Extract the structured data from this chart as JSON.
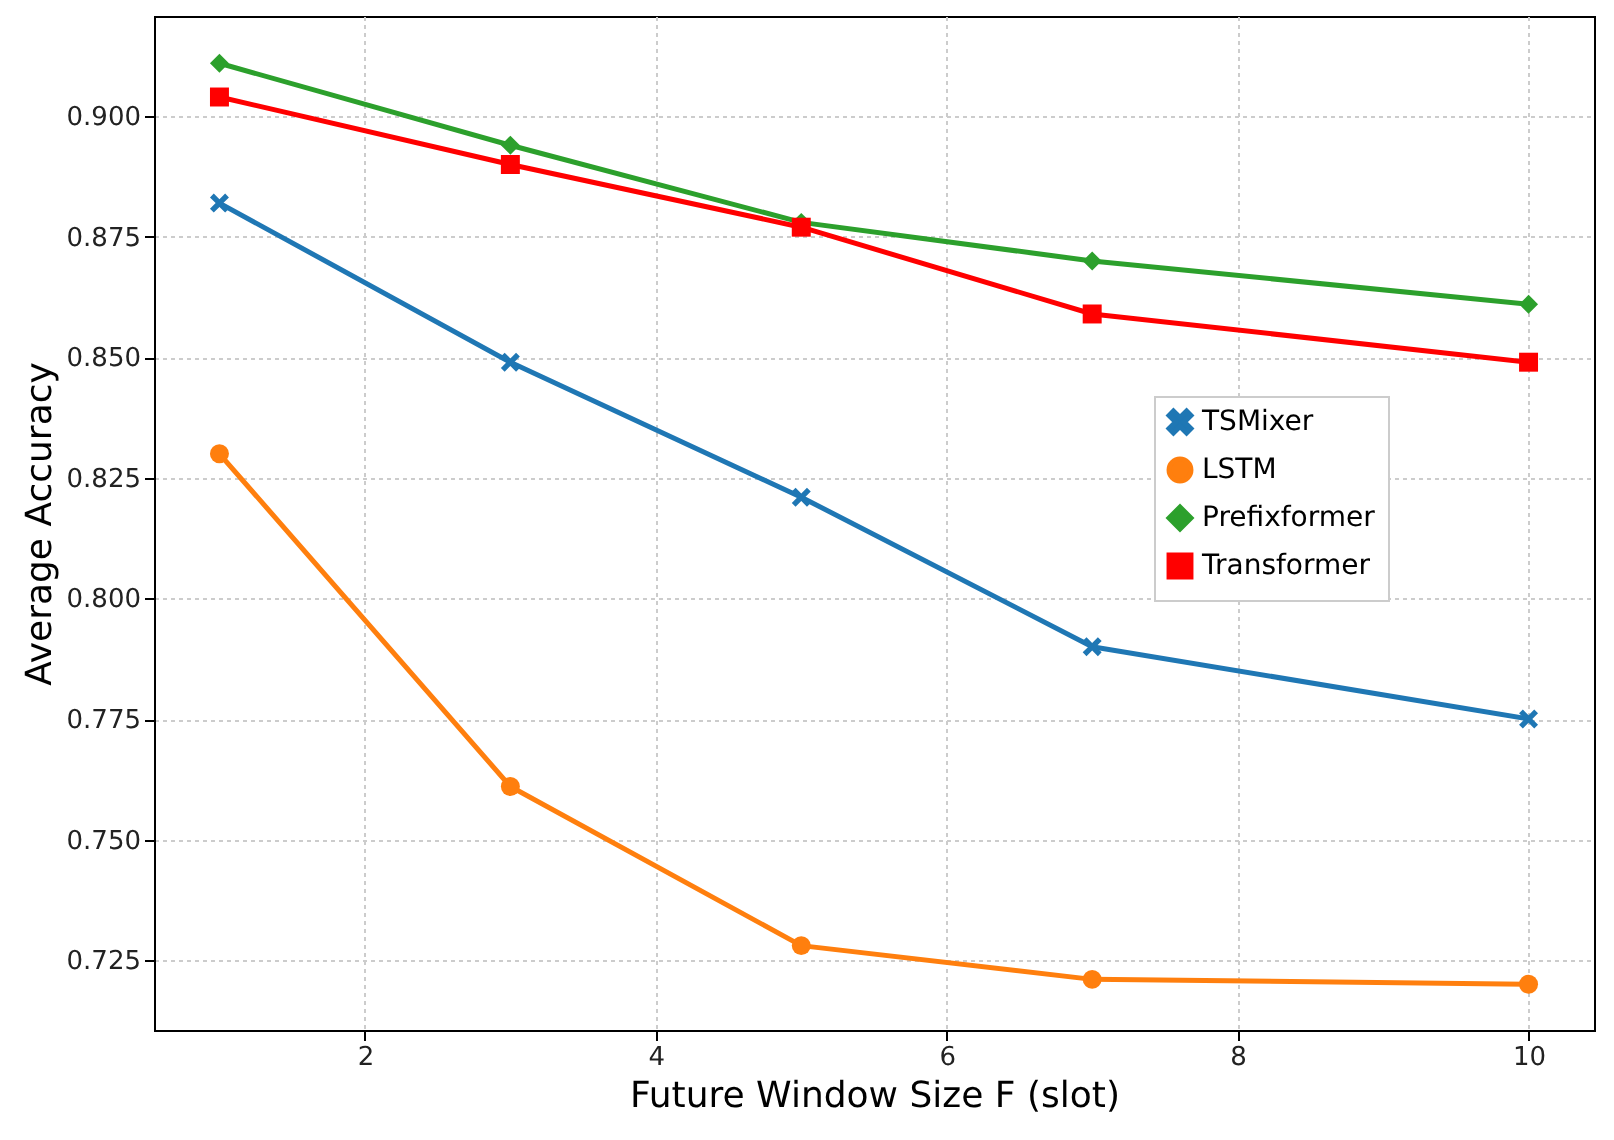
{
  "chart_data": {
    "type": "line",
    "xlabel": "Future Window Size F (slot)",
    "ylabel": "Average Accuracy",
    "x": [
      1,
      3,
      5,
      7,
      10
    ],
    "series": [
      {
        "name": "TSMixer",
        "color": "#1f77b4",
        "marker": "cross",
        "values": [
          0.882,
          0.849,
          0.821,
          0.79,
          0.775
        ]
      },
      {
        "name": "LSTM",
        "color": "#ff7f0e",
        "marker": "circle",
        "values": [
          0.83,
          0.761,
          0.728,
          0.721,
          0.72
        ]
      },
      {
        "name": "Prefixformer",
        "color": "#2ca02c",
        "marker": "diamond",
        "values": [
          0.911,
          0.894,
          0.878,
          0.87,
          0.861
        ]
      },
      {
        "name": "Transformer",
        "color": "#ff0000",
        "marker": "square",
        "values": [
          0.904,
          0.89,
          0.877,
          0.859,
          0.849
        ]
      }
    ],
    "xlim": [
      0.55,
      10.45
    ],
    "ylim": [
      0.7105,
      0.9208
    ],
    "xticks": [
      2,
      4,
      6,
      8,
      10
    ],
    "yticks": [
      0.725,
      {
        "value": 0.75,
        "label": "0.750"
      },
      0.775,
      {
        "value": 0.8,
        "label": "0.800"
      },
      0.825,
      {
        "value": 0.85,
        "label": "0.850"
      },
      0.875,
      {
        "value": 0.9,
        "label": "0.900"
      }
    ],
    "grid": true,
    "legend": "right",
    "line_style": "solid"
  }
}
